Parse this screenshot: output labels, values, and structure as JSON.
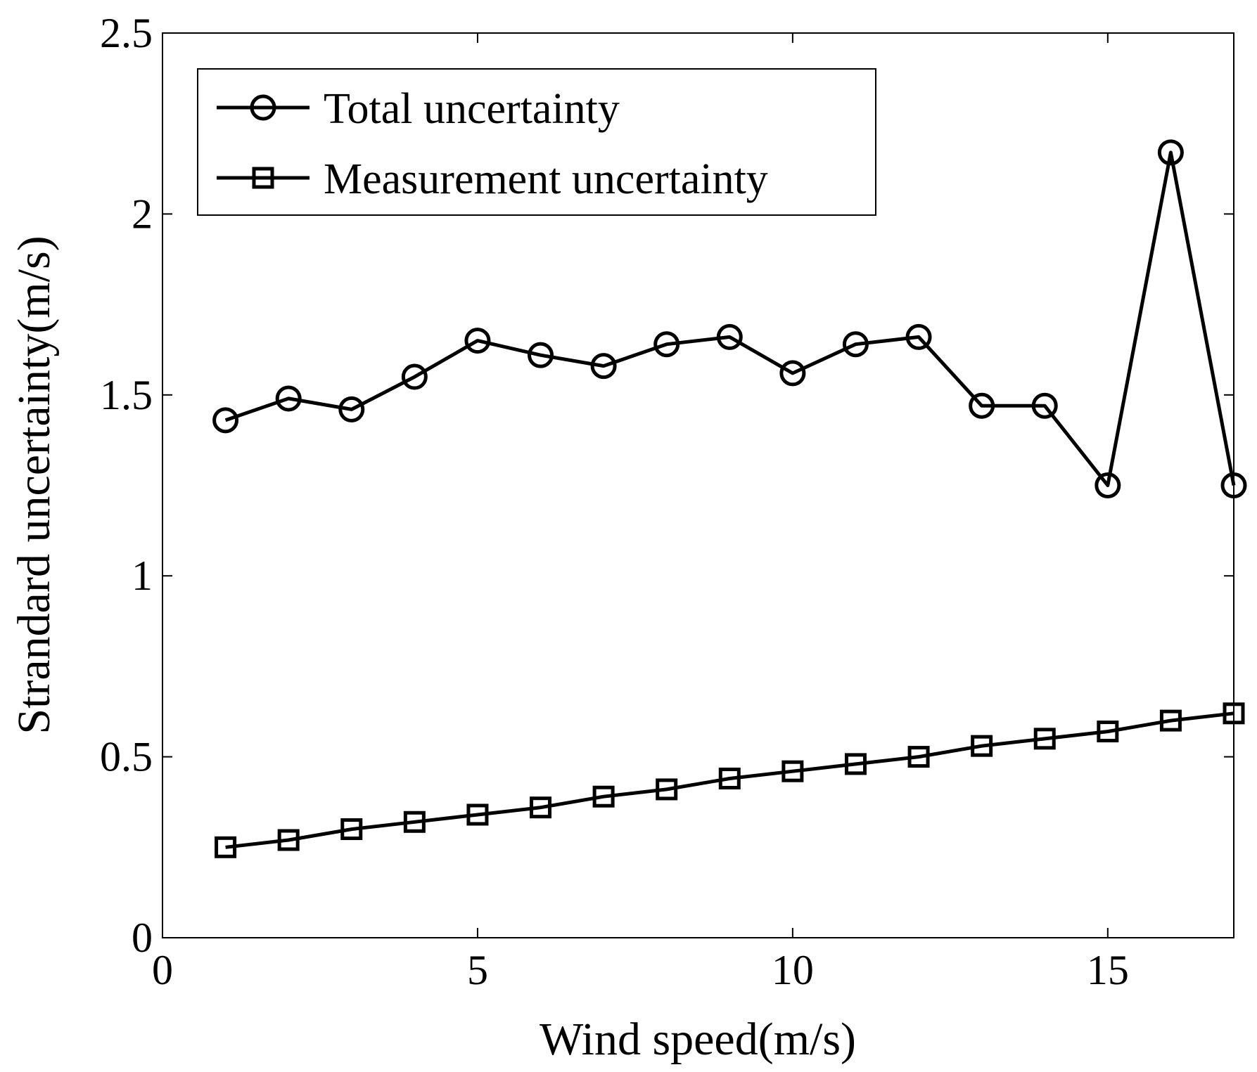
{
  "chart_data": {
    "type": "line",
    "title": "",
    "xlabel": "Wind speed(m/s)",
    "ylabel": "Strandard uncertainty(m/s)",
    "xlim": [
      0,
      17
    ],
    "ylim": [
      0,
      2.5
    ],
    "xticks": [
      0,
      5,
      10,
      15
    ],
    "xtick_labels": [
      "0",
      "5",
      "10",
      "15"
    ],
    "yticks": [
      0,
      0.5,
      1,
      1.5,
      2,
      2.5
    ],
    "ytick_labels": [
      "0",
      "0.5",
      "1",
      "1.5",
      "2",
      "2.5"
    ],
    "grid": false,
    "legend_position": "top-left",
    "x": [
      1,
      2,
      3,
      4,
      5,
      6,
      7,
      8,
      9,
      10,
      11,
      12,
      13,
      14,
      15,
      16,
      17
    ],
    "series": [
      {
        "name": "Total uncertainty",
        "marker": "circle",
        "values": [
          1.43,
          1.49,
          1.46,
          1.55,
          1.65,
          1.61,
          1.58,
          1.64,
          1.66,
          1.56,
          1.64,
          1.66,
          1.47,
          1.47,
          1.25,
          2.17,
          1.25
        ]
      },
      {
        "name": "Measurement uncertainty",
        "marker": "square",
        "values": [
          0.25,
          0.27,
          0.3,
          0.32,
          0.34,
          0.36,
          0.39,
          0.41,
          0.44,
          0.46,
          0.48,
          0.5,
          0.53,
          0.55,
          0.57,
          0.6,
          0.62
        ]
      }
    ]
  }
}
